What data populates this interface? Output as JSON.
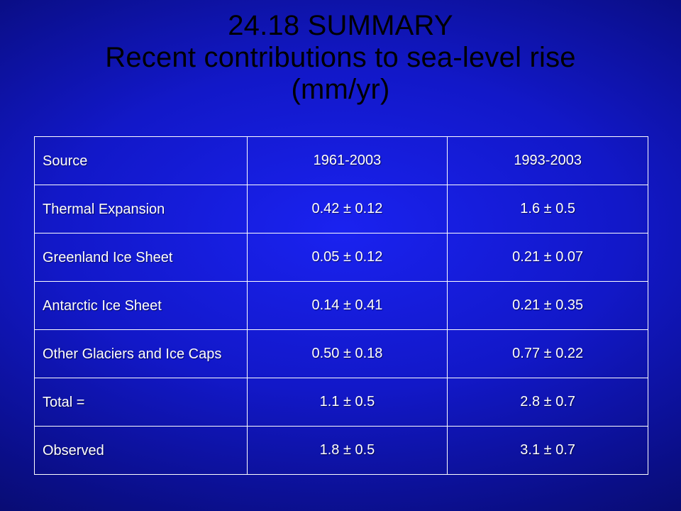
{
  "slide": {
    "title_line1": "24.18  SUMMARY",
    "title_line2": "Recent contributions to sea-level rise",
    "title_line3": "(mm/yr)"
  },
  "table": {
    "headers": [
      "Source",
      "1961-2003",
      "1993-2003"
    ],
    "rows": [
      [
        "Thermal Expansion",
        "0.42 ± 0.12",
        "1.6 ± 0.5"
      ],
      [
        "Greenland Ice Sheet",
        "0.05 ± 0.12",
        "0.21 ± 0.07"
      ],
      [
        "Antarctic Ice Sheet",
        "0.14 ± 0.41",
        "0.21 ± 0.35"
      ],
      [
        "Other Glaciers and Ice Caps",
        "0.50 ± 0.18",
        "0.77 ± 0.22"
      ],
      [
        "Total =",
        "1.1 ± 0.5",
        "2.8 ± 0.7"
      ],
      [
        "Observed",
        "1.8 ± 0.5",
        "3.1 ± 0.7"
      ]
    ]
  },
  "colors": {
    "background_center": "#1a22f0",
    "background_edge": "#05073f",
    "title_text": "#000000",
    "table_text": "#ffffff",
    "table_border": "#ffffff"
  }
}
